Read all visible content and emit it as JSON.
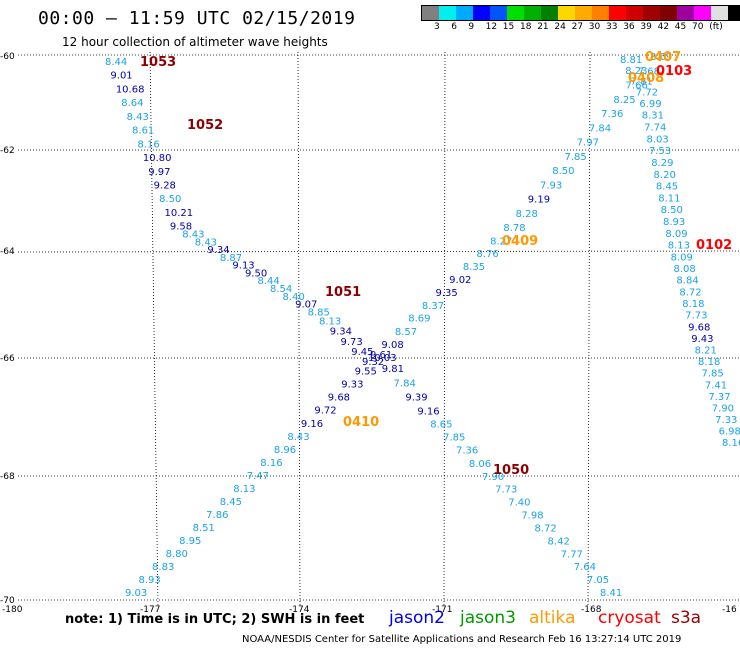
{
  "header": {
    "title": "00:00 – 11:59 UTC 02/15/2019",
    "subtitle": "12 hour collection of altimeter wave heights"
  },
  "scale": {
    "colors": [
      "#808080",
      "#00f0f0",
      "#00aaff",
      "#0000ff",
      "#0055ff",
      "#00e000",
      "#00b000",
      "#008000",
      "#ffd700",
      "#ffaa00",
      "#ff7f00",
      "#ff0000",
      "#d00000",
      "#a00000",
      "#7f0000",
      "#a000a0",
      "#ff00ff",
      "#e0e0e0",
      "#000000"
    ],
    "labels": [
      "3",
      "6",
      "9",
      "12",
      "15",
      "18",
      "21",
      "24",
      "27",
      "30",
      "33",
      "36",
      "39",
      "42",
      "45",
      "70",
      "(ft)"
    ]
  },
  "axes": {
    "lon_labels": [
      "-180",
      "-177",
      "-174",
      "-171",
      "-168",
      "-16"
    ],
    "lat_labels": [
      "-60",
      "-62",
      "-64",
      "-66",
      "-68",
      "-70"
    ]
  },
  "note": "note: 1) Time is in UTC; 2) SWH is in feet",
  "legend": [
    {
      "label": "jason2",
      "color": "#0000ee"
    },
    {
      "label": "jason3",
      "color": "#009900"
    },
    {
      "label": "altika",
      "color": "#ff9900"
    },
    {
      "label": "cryosat",
      "color": "#ff0000"
    },
    {
      "label": "s3a",
      "color": "#990000"
    }
  ],
  "credit": "NOAA/NESDIS Center for Satellite Applications and Research   Feb 16 13:27:14 UTC 2019",
  "colors": {
    "light": "#1aa3e8",
    "dark": "#0000b0",
    "pass_dark": "#8b0000",
    "pass_orange": "#ff9900",
    "pass_red": "#ff0000"
  },
  "map_data": {
    "passes": [
      {
        "label": "1053",
        "color": "pass_dark"
      },
      {
        "label": "1052",
        "color": "pass_dark"
      },
      {
        "label": "1051",
        "color": "pass_dark"
      },
      {
        "label": "1050",
        "color": "pass_dark"
      },
      {
        "label": "0407",
        "color": "pass_orange"
      },
      {
        "label": "0408",
        "color": "pass_orange"
      },
      {
        "label": "0409",
        "color": "pass_orange"
      },
      {
        "label": "0410",
        "color": "pass_orange"
      },
      {
        "label": "0103",
        "color": "pass_red"
      },
      {
        "label": "0102",
        "color": "pass_red"
      }
    ],
    "tracks": [
      {
        "name": "track-1051-1052-1053",
        "values": [
          [
            "8.44",
            "light"
          ],
          [
            "9.01",
            "dark"
          ],
          [
            "10.68",
            "dark"
          ],
          [
            "8.64",
            "light"
          ],
          [
            "8.43",
            "light"
          ],
          [
            "8.61",
            "light"
          ],
          [
            "8.16",
            "light"
          ],
          [
            "10.80",
            "dark"
          ],
          [
            "9.97",
            "dark"
          ],
          [
            "9.28",
            "dark"
          ],
          [
            "8.50",
            "light"
          ],
          [
            "10.21",
            "dark"
          ],
          [
            "9.58",
            "dark"
          ],
          [
            "8.43",
            "light"
          ],
          [
            "8.43",
            "light"
          ],
          [
            "9.34",
            "dark"
          ],
          [
            "8.87",
            "light"
          ],
          [
            "9.13",
            "dark"
          ],
          [
            "9.50",
            "dark"
          ],
          [
            "8.44",
            "light"
          ],
          [
            "8.54",
            "light"
          ],
          [
            "8.40",
            "light"
          ],
          [
            "9.07",
            "dark"
          ],
          [
            "8.85",
            "light"
          ],
          [
            "8.13",
            "light"
          ],
          [
            "9.34",
            "dark"
          ],
          [
            "9.73",
            "dark"
          ],
          [
            "9.45",
            "dark"
          ],
          [
            "9.32",
            "dark"
          ]
        ]
      },
      {
        "name": "track-1050",
        "values": [
          [
            "9.61",
            "dark"
          ],
          [
            "9.81",
            "dark"
          ],
          [
            "7.84",
            "light"
          ],
          [
            "9.39",
            "dark"
          ],
          [
            "9.16",
            "dark"
          ],
          [
            "8.65",
            "light"
          ],
          [
            "7.85",
            "light"
          ],
          [
            "7.36",
            "light"
          ],
          [
            "8.06",
            "light"
          ],
          [
            "7.90",
            "light"
          ],
          [
            "7.73",
            "light"
          ],
          [
            "7.40",
            "light"
          ],
          [
            "7.98",
            "light"
          ],
          [
            "8.72",
            "light"
          ],
          [
            "8.42",
            "light"
          ],
          [
            "7.77",
            "light"
          ],
          [
            "7.64",
            "light"
          ],
          [
            "7.05",
            "light"
          ],
          [
            "8.41",
            "light"
          ]
        ]
      },
      {
        "name": "track-0409-0410",
        "values": [
          [
            "9.03",
            "light"
          ],
          [
            "8.93",
            "light"
          ],
          [
            "8.83",
            "light"
          ],
          [
            "8.80",
            "light"
          ],
          [
            "8.95",
            "light"
          ],
          [
            "8.51",
            "light"
          ],
          [
            "7.86",
            "light"
          ],
          [
            "8.45",
            "light"
          ],
          [
            "8.13",
            "light"
          ],
          [
            "7.47",
            "light"
          ],
          [
            "8.16",
            "light"
          ],
          [
            "8.96",
            "light"
          ],
          [
            "8.43",
            "light"
          ],
          [
            "9.16",
            "dark"
          ],
          [
            "9.72",
            "dark"
          ],
          [
            "9.68",
            "dark"
          ],
          [
            "9.33",
            "dark"
          ],
          [
            "9.55",
            "dark"
          ],
          [
            "10.03",
            "dark"
          ],
          [
            "9.08",
            "dark"
          ],
          [
            "8.57",
            "light"
          ],
          [
            "8.69",
            "light"
          ],
          [
            "8.37",
            "light"
          ],
          [
            "9.35",
            "dark"
          ],
          [
            "9.02",
            "dark"
          ],
          [
            "8.35",
            "light"
          ],
          [
            "8.76",
            "light"
          ],
          [
            "8.27",
            "light"
          ],
          [
            "8.78",
            "light"
          ],
          [
            "8.28",
            "light"
          ],
          [
            "9.19",
            "dark"
          ],
          [
            "7.93",
            "light"
          ],
          [
            "8.50",
            "light"
          ],
          [
            "7.85",
            "light"
          ],
          [
            "7.97",
            "light"
          ],
          [
            "7.84",
            "light"
          ],
          [
            "7.36",
            "light"
          ],
          [
            "8.25",
            "light"
          ],
          [
            "7.66",
            "light"
          ],
          [
            "7.68",
            "light"
          ],
          [
            "8.69",
            "light"
          ]
        ]
      },
      {
        "name": "track-0102-0103",
        "values": [
          [
            "8.81",
            "light"
          ],
          [
            "8.23",
            "light"
          ],
          [
            "7.81",
            "light"
          ],
          [
            "7.72",
            "light"
          ],
          [
            "6.99",
            "light"
          ],
          [
            "8.31",
            "light"
          ],
          [
            "7.74",
            "light"
          ],
          [
            "8.03",
            "light"
          ],
          [
            "7.53",
            "light"
          ],
          [
            "8.29",
            "light"
          ],
          [
            "8.20",
            "light"
          ],
          [
            "8.45",
            "light"
          ],
          [
            "8.11",
            "light"
          ],
          [
            "8.50",
            "light"
          ],
          [
            "8.93",
            "light"
          ],
          [
            "8.09",
            "light"
          ],
          [
            "8.13",
            "light"
          ],
          [
            "8.09",
            "light"
          ],
          [
            "8.08",
            "light"
          ],
          [
            "8.84",
            "light"
          ],
          [
            "8.72",
            "light"
          ],
          [
            "8.18",
            "light"
          ],
          [
            "7.73",
            "light"
          ],
          [
            "9.68",
            "dark"
          ],
          [
            "9.43",
            "dark"
          ],
          [
            "8.21",
            "light"
          ],
          [
            "8.18",
            "light"
          ],
          [
            "7.85",
            "light"
          ],
          [
            "7.41",
            "light"
          ],
          [
            "7.37",
            "light"
          ],
          [
            "7.90",
            "light"
          ],
          [
            "7.33",
            "light"
          ],
          [
            "6.98",
            "light"
          ],
          [
            "8.16",
            "light"
          ]
        ]
      }
    ]
  }
}
